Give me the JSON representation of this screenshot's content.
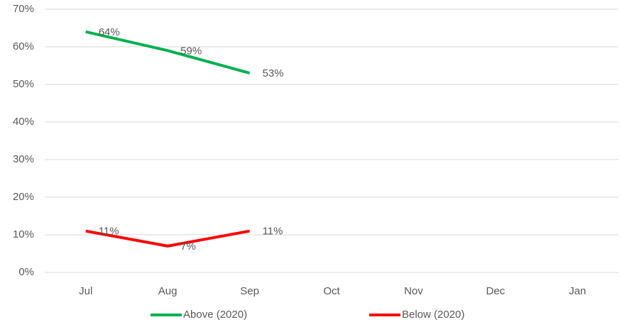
{
  "chart_data": {
    "type": "line",
    "categories": [
      "Jul",
      "Aug",
      "Sep",
      "Oct",
      "Nov",
      "Dec",
      "Jan"
    ],
    "series": [
      {
        "name": "Above (2020)",
        "color": "#00b050",
        "values": [
          64,
          59,
          53,
          null,
          null,
          null,
          null
        ],
        "value_labels": [
          "64%",
          "59%",
          "53%",
          null,
          null,
          null,
          null
        ]
      },
      {
        "name": "Below (2020)",
        "color": "#ff0000",
        "values": [
          11,
          7,
          11,
          null,
          null,
          null,
          null
        ],
        "value_labels": [
          "11%",
          "7%",
          "11%",
          null,
          null,
          null,
          null
        ]
      }
    ],
    "ylim": [
      0,
      70
    ],
    "yticks": [
      {
        "value": 0,
        "label": "0%"
      },
      {
        "value": 10,
        "label": "10%"
      },
      {
        "value": 20,
        "label": "20%"
      },
      {
        "value": 30,
        "label": "30%"
      },
      {
        "value": 40,
        "label": "40%"
      },
      {
        "value": 50,
        "label": "50%"
      },
      {
        "value": 60,
        "label": "60%"
      },
      {
        "value": 70,
        "label": "70%"
      }
    ],
    "grid": true,
    "legend": "bottom"
  }
}
